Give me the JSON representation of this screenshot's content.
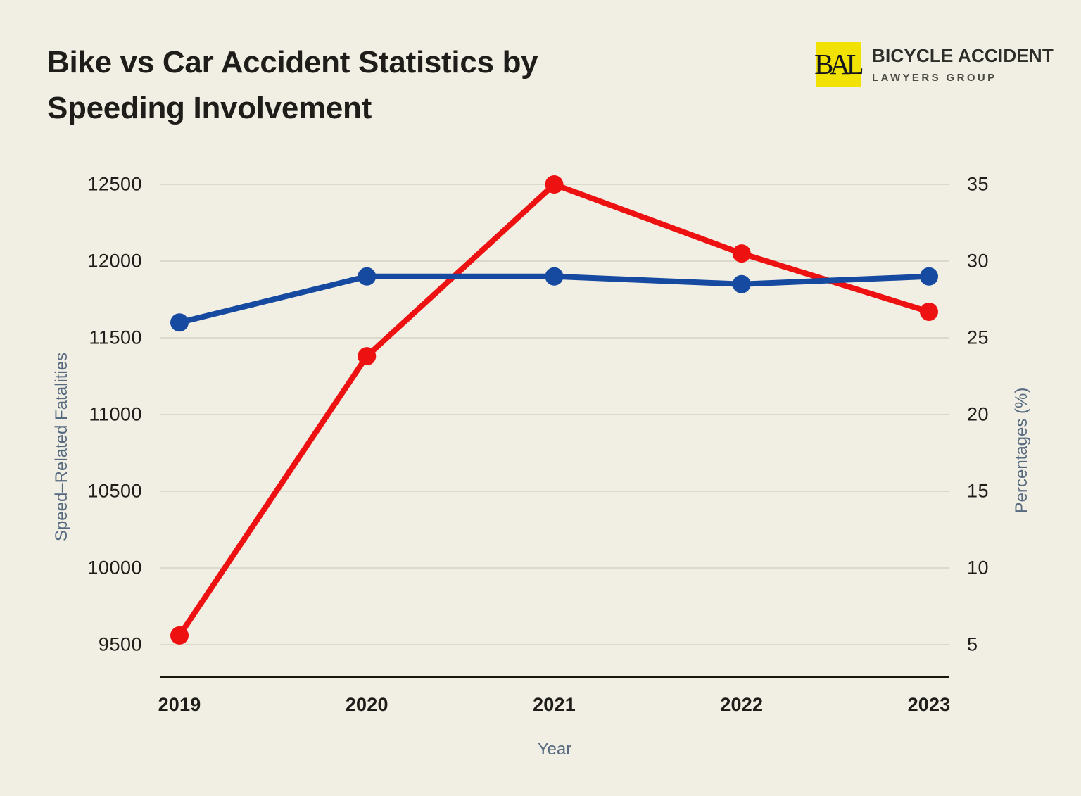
{
  "header": {
    "title_line1": "Bike vs Car Accident Statistics by",
    "title_line2": "Speeding Involvement"
  },
  "logo": {
    "monogram": "BAL",
    "name": "BICYCLE ACCIDENT",
    "tagline": "LAWYERS GROUP"
  },
  "theme": {
    "background": "#F1EFE4",
    "gridline": "#DBD9CC",
    "axis_line": "#18170F",
    "text": "#1E1D19",
    "axis_title_color": "#55697F",
    "series_red": "#EE1111",
    "series_blue": "#1649A0",
    "logo_yellow": "#F2E203"
  },
  "chart_data": {
    "type": "line",
    "x": [
      "2019",
      "2020",
      "2021",
      "2022",
      "2023"
    ],
    "xlabel": "Year",
    "grid": true,
    "legend": "none",
    "left_axis": {
      "label": "Speed–Related Fatalities",
      "range": [
        9500,
        12500
      ],
      "ticks": [
        12500,
        12000,
        11500,
        11000,
        10500,
        10000,
        9500
      ]
    },
    "right_axis": {
      "label": "Percentages (%)",
      "range": [
        5,
        35
      ],
      "ticks": [
        35,
        30,
        25,
        20,
        15,
        10,
        5
      ]
    },
    "series": [
      {
        "name": "Speed–Related Fatalities",
        "axis": "left",
        "color": "#EE1111",
        "marker": "circle",
        "values": [
          9560,
          11380,
          12500,
          12050,
          11670
        ]
      },
      {
        "name": "Percentages (%)",
        "axis": "right",
        "color": "#1649A0",
        "marker": "circle",
        "values": [
          26,
          29,
          29,
          28.5,
          29
        ]
      }
    ]
  }
}
